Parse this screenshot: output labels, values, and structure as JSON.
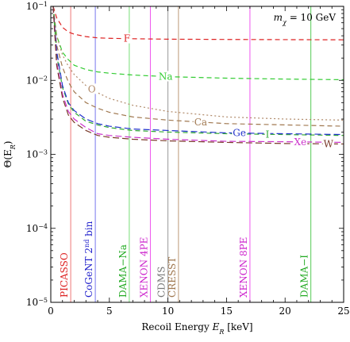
{
  "chart_data": {
    "type": "line",
    "xlabel": "Recoil Energy  E_R [keV]",
    "xlabel_parts": {
      "text": "Recoil Energy  ",
      "var": "E",
      "sub": "R",
      "unit": " [keV]"
    },
    "ylabel_parts": {
      "var": "Θ(E",
      "sub": "R",
      "close": ")"
    },
    "annotation": {
      "var": "m",
      "sub": "χ",
      "rest": " = 10 GeV"
    },
    "xlim": [
      0,
      25
    ],
    "ylim": [
      1e-05,
      0.1
    ],
    "yscale": "log",
    "x_ticks": [
      0,
      5,
      10,
      15,
      20,
      25
    ],
    "x_tick_labels": [
      "0",
      "5",
      "10",
      "15",
      "20",
      "25"
    ],
    "y_ticks": [
      1e-05,
      0.0001,
      0.001,
      0.01,
      0.1
    ],
    "y_tick_labels": [
      {
        "base": "10",
        "exp": "−5"
      },
      {
        "base": "10",
        "exp": "−4"
      },
      {
        "base": "10",
        "exp": "−3"
      },
      {
        "base": "10",
        "exp": "−2"
      },
      {
        "base": "10",
        "exp": "−1"
      }
    ],
    "series": [
      {
        "name": "F",
        "color": "#dd2222",
        "dash": "6,4",
        "x": [
          0.2,
          0.5,
          1,
          1.5,
          2,
          3,
          4,
          5,
          7,
          10,
          15,
          20,
          25
        ],
        "y": [
          0.1,
          0.07,
          0.052,
          0.045,
          0.042,
          0.039,
          0.0375,
          0.037,
          0.0365,
          0.036,
          0.0357,
          0.0355,
          0.0353
        ],
        "label_x": 6.5
      },
      {
        "name": "Na",
        "color": "#33cc33",
        "dash": "6,4",
        "x": [
          0.2,
          0.5,
          1,
          1.5,
          2,
          3,
          4,
          5,
          7,
          10,
          15,
          20,
          25
        ],
        "y": [
          0.1,
          0.04,
          0.024,
          0.019,
          0.016,
          0.014,
          0.013,
          0.0125,
          0.0118,
          0.0112,
          0.0107,
          0.0104,
          0.0102
        ],
        "label_x": 9.8
      },
      {
        "name": "O",
        "color": "#b08a6a",
        "dash": "2,3",
        "x": [
          0.2,
          0.5,
          1,
          1.5,
          2,
          3,
          4,
          5,
          7,
          10,
          15,
          20,
          25
        ],
        "y": [
          0.1,
          0.04,
          0.022,
          0.0155,
          0.012,
          0.0085,
          0.0068,
          0.0057,
          0.0046,
          0.0038,
          0.0032,
          0.003,
          0.0029
        ],
        "label_x": 3.5
      },
      {
        "name": "Ca",
        "color": "#a07850",
        "dash": "6,4",
        "x": [
          0.2,
          0.5,
          1,
          1.5,
          2,
          3,
          4,
          5,
          7,
          10,
          15,
          20,
          25
        ],
        "y": [
          0.1,
          0.03,
          0.015,
          0.0095,
          0.007,
          0.005,
          0.0042,
          0.0037,
          0.0032,
          0.0029,
          0.0026,
          0.0025,
          0.0024
        ],
        "label_x": 12.8
      },
      {
        "name": "I",
        "color": "#33aa33",
        "dash": "6,4",
        "x": [
          0.2,
          0.5,
          1,
          1.5,
          2,
          3,
          4,
          5,
          7,
          10,
          15,
          20,
          25
        ],
        "y": [
          0.1,
          0.022,
          0.008,
          0.0048,
          0.0037,
          0.0028,
          0.0025,
          0.0023,
          0.0021,
          0.002,
          0.0019,
          0.00185,
          0.0018
        ],
        "label_x": 18.5
      },
      {
        "name": "Ge",
        "color": "#2233cc",
        "dash": "8,4",
        "x": [
          0.2,
          0.5,
          1,
          1.5,
          2,
          3,
          4,
          5,
          7,
          10,
          15,
          20,
          25
        ],
        "y": [
          0.1,
          0.025,
          0.0085,
          0.005,
          0.0039,
          0.003,
          0.0026,
          0.0024,
          0.0022,
          0.0021,
          0.00195,
          0.0019,
          0.00185
        ],
        "label_x": 16.1
      },
      {
        "name": "Xe",
        "color": "#cc33cc",
        "dash": "8,4",
        "x": [
          0.2,
          0.5,
          1,
          1.5,
          2,
          3,
          4,
          5,
          7,
          10,
          15,
          20,
          25
        ],
        "y": [
          0.1,
          0.018,
          0.0065,
          0.0038,
          0.003,
          0.0023,
          0.0019,
          0.0018,
          0.0017,
          0.0016,
          0.0015,
          0.00148,
          0.00145
        ],
        "label_x": 21.3
      },
      {
        "name": "W",
        "color": "#7a3a2a",
        "dash": "8,4",
        "x": [
          0.2,
          0.5,
          1,
          1.5,
          2,
          3,
          4,
          5,
          7,
          10,
          15,
          20,
          25
        ],
        "y": [
          0.1,
          0.016,
          0.0058,
          0.0034,
          0.0027,
          0.0021,
          0.0018,
          0.0017,
          0.0016,
          0.00152,
          0.00145,
          0.0014,
          0.00138
        ],
        "label_x": 23.7
      }
    ],
    "thresholds": [
      {
        "name": "PICASSO",
        "x": 1.7,
        "color": "#ee7777",
        "text_color": "#dd2222"
      },
      {
        "name": "CoGeNT 2nd bin",
        "name_parts": [
          "CoGeNT 2",
          "nd",
          " bin"
        ],
        "x": 3.8,
        "color": "#7777ee",
        "text_color": "#2222cc"
      },
      {
        "name": "DAMA−Na",
        "x": 6.7,
        "color": "#77dd77",
        "text_color": "#22aa22"
      },
      {
        "name": "XENON 4PE",
        "x": 8.5,
        "color": "#ee55ee",
        "text_color": "#cc22cc"
      },
      {
        "name": "CDMS",
        "x": 10.0,
        "color": "#999999",
        "text_color": "#777777"
      },
      {
        "name": "CRESST",
        "x": 10.9,
        "color": "#bb9977",
        "text_color": "#a07850"
      },
      {
        "name": "XENON 8PE",
        "x": 17.0,
        "color": "#ee55ee",
        "text_color": "#cc22cc"
      },
      {
        "name": "DAMA−I",
        "x": 22.2,
        "color": "#55cc55",
        "text_color": "#22aa22"
      }
    ]
  }
}
